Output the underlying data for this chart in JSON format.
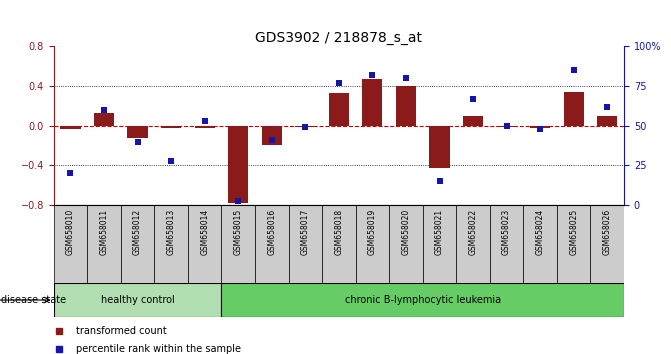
{
  "title": "GDS3902 / 218878_s_at",
  "samples": [
    "GSM658010",
    "GSM658011",
    "GSM658012",
    "GSM658013",
    "GSM658014",
    "GSM658015",
    "GSM658016",
    "GSM658017",
    "GSM658018",
    "GSM658019",
    "GSM658020",
    "GSM658021",
    "GSM658022",
    "GSM658023",
    "GSM658024",
    "GSM658025",
    "GSM658026"
  ],
  "bar_values": [
    -0.03,
    0.13,
    -0.12,
    -0.02,
    -0.02,
    -0.78,
    -0.19,
    -0.01,
    0.33,
    0.47,
    0.4,
    -0.43,
    0.1,
    -0.01,
    -0.02,
    0.34,
    0.1
  ],
  "dot_values": [
    20,
    60,
    40,
    28,
    53,
    3,
    41,
    49,
    77,
    82,
    80,
    15,
    67,
    50,
    48,
    85,
    62
  ],
  "bar_color": "#8B1A1A",
  "dot_color": "#1515AA",
  "healthy_count": 5,
  "healthy_label": "healthy control",
  "disease_label": "chronic B-lymphocytic leukemia",
  "healthy_bg": "#b2dfb2",
  "disease_bg": "#66cc66",
  "group_bar_bg": "#cccccc",
  "ylim_left": [
    -0.8,
    0.8
  ],
  "ylim_right": [
    0,
    100
  ],
  "yticks_left": [
    -0.8,
    -0.4,
    0.0,
    0.4,
    0.8
  ],
  "yticks_right": [
    0,
    25,
    50,
    75,
    100
  ],
  "ytick_labels_right": [
    "0",
    "25",
    "50",
    "75",
    "100%"
  ],
  "hline_color": "#cc0000",
  "dotted_vals": [
    -0.4,
    0.4
  ],
  "legend_bar_label": "transformed count",
  "legend_dot_label": "percentile rank within the sample",
  "disease_state_label": "disease state"
}
